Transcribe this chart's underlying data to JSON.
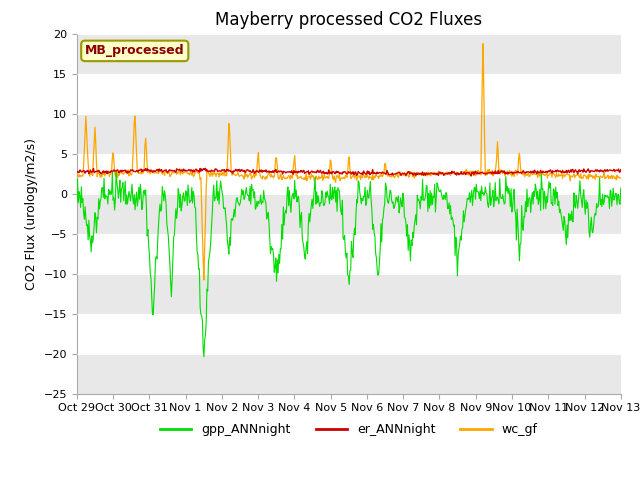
{
  "title": "Mayberry processed CO2 Fluxes",
  "ylabel": "CO2 Flux (urology/m2/s)",
  "ylim": [
    -25,
    20
  ],
  "yticks": [
    -25,
    -20,
    -15,
    -10,
    -5,
    0,
    5,
    10,
    15,
    20
  ],
  "fig_bg": "#ffffff",
  "plot_bg": "#ffffff",
  "band_color": "#e8e8e8",
  "legend_box_label": "MB_processed",
  "legend_box_text_color": "#8b0000",
  "legend_box_face": "#ffffcc",
  "legend_box_edge": "#999900",
  "line_colors": {
    "gpp": "#00dd00",
    "er": "#cc0000",
    "wc": "#ffa500"
  },
  "line_widths": {
    "gpp": 0.8,
    "er": 1.0,
    "wc": 0.9
  },
  "legend_labels": [
    "gpp_ANNnight",
    "er_ANNnight",
    "wc_gf"
  ],
  "x_tick_labels": [
    "Oct 29",
    "Oct 30",
    "Oct 31",
    "Nov 1",
    "Nov 2",
    "Nov 3",
    "Nov 4",
    "Nov 5",
    "Nov 6",
    "Nov 7",
    "Nov 8",
    "Nov 9",
    "Nov 10",
    "Nov 11",
    "Nov 12",
    "Nov 13"
  ],
  "n_days": 15
}
